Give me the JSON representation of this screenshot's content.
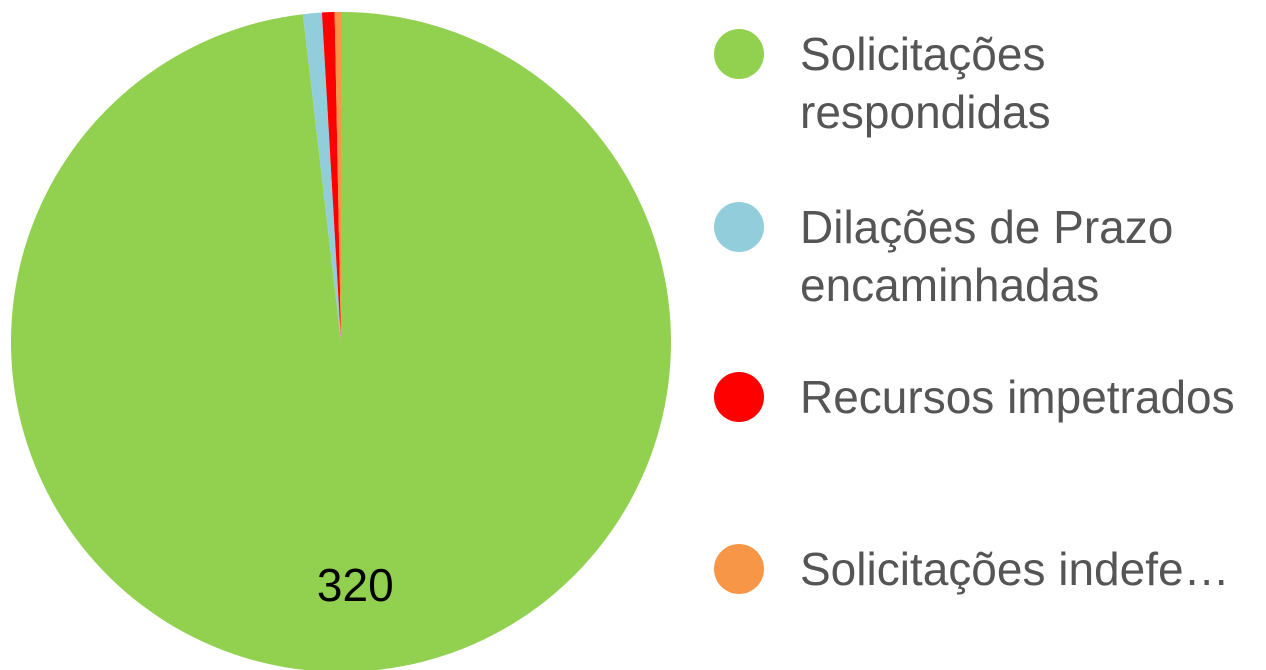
{
  "chart_data": {
    "type": "pie",
    "categories": [
      "Solicitações respondidas",
      "Dilações de Prazo encaminhadas",
      "Recursos impetrados",
      "Solicitações indefe…"
    ],
    "values": [
      320,
      3,
      2,
      1
    ],
    "colors": [
      "#92d050",
      "#92cddc",
      "#ff0000",
      "#f79646"
    ],
    "legend": "right"
  }
}
